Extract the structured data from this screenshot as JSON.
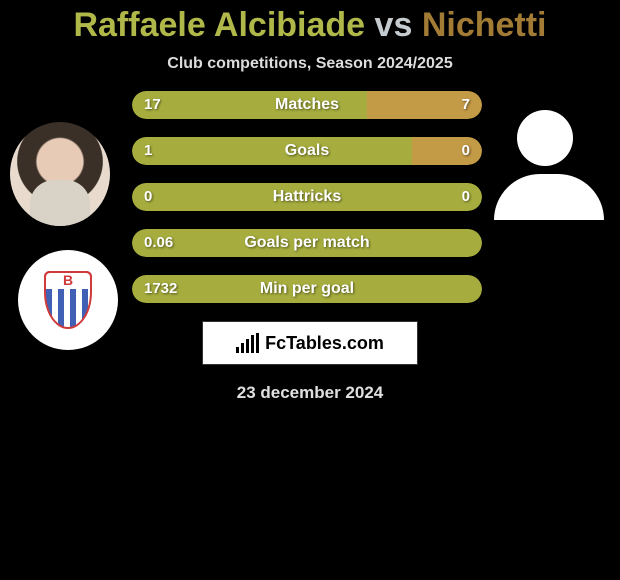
{
  "title": {
    "player1": "Raffaele Alcibiade",
    "vs": "vs",
    "player2": "Nichetti"
  },
  "subtitle": "Club competitions, Season 2024/2025",
  "stats": [
    {
      "label": "Matches",
      "left_value": "17",
      "right_value": "7",
      "left_pct": 67,
      "right_pct": 33,
      "left_color": "#a6ad3e",
      "right_color": "#c39a46"
    },
    {
      "label": "Goals",
      "left_value": "1",
      "right_value": "0",
      "left_pct": 80,
      "right_pct": 20,
      "left_color": "#a6ad3e",
      "right_color": "#c39a46"
    },
    {
      "label": "Hattricks",
      "left_value": "0",
      "right_value": "0",
      "left_pct": 100,
      "right_pct": 0,
      "left_color": "#a6ad3e",
      "right_color": "#c39a46"
    },
    {
      "label": "Goals per match",
      "left_value": "0.06",
      "right_value": "",
      "left_pct": 100,
      "right_pct": 0,
      "left_color": "#a6ad3e",
      "right_color": "#c39a46"
    },
    {
      "label": "Min per goal",
      "left_value": "1732",
      "right_value": "",
      "left_pct": 100,
      "right_pct": 0,
      "left_color": "#a6ad3e",
      "right_color": "#c39a46"
    }
  ],
  "footer": {
    "site": "FcTables.com",
    "date": "23 december 2024"
  },
  "colors": {
    "background": "#000000",
    "player1_accent": "#b1b84a",
    "player2_accent": "#a27c35",
    "bar_left": "#a6ad3e",
    "bar_right": "#c39a46"
  },
  "logo_bars_heights": [
    6,
    10,
    14,
    18,
    20
  ]
}
